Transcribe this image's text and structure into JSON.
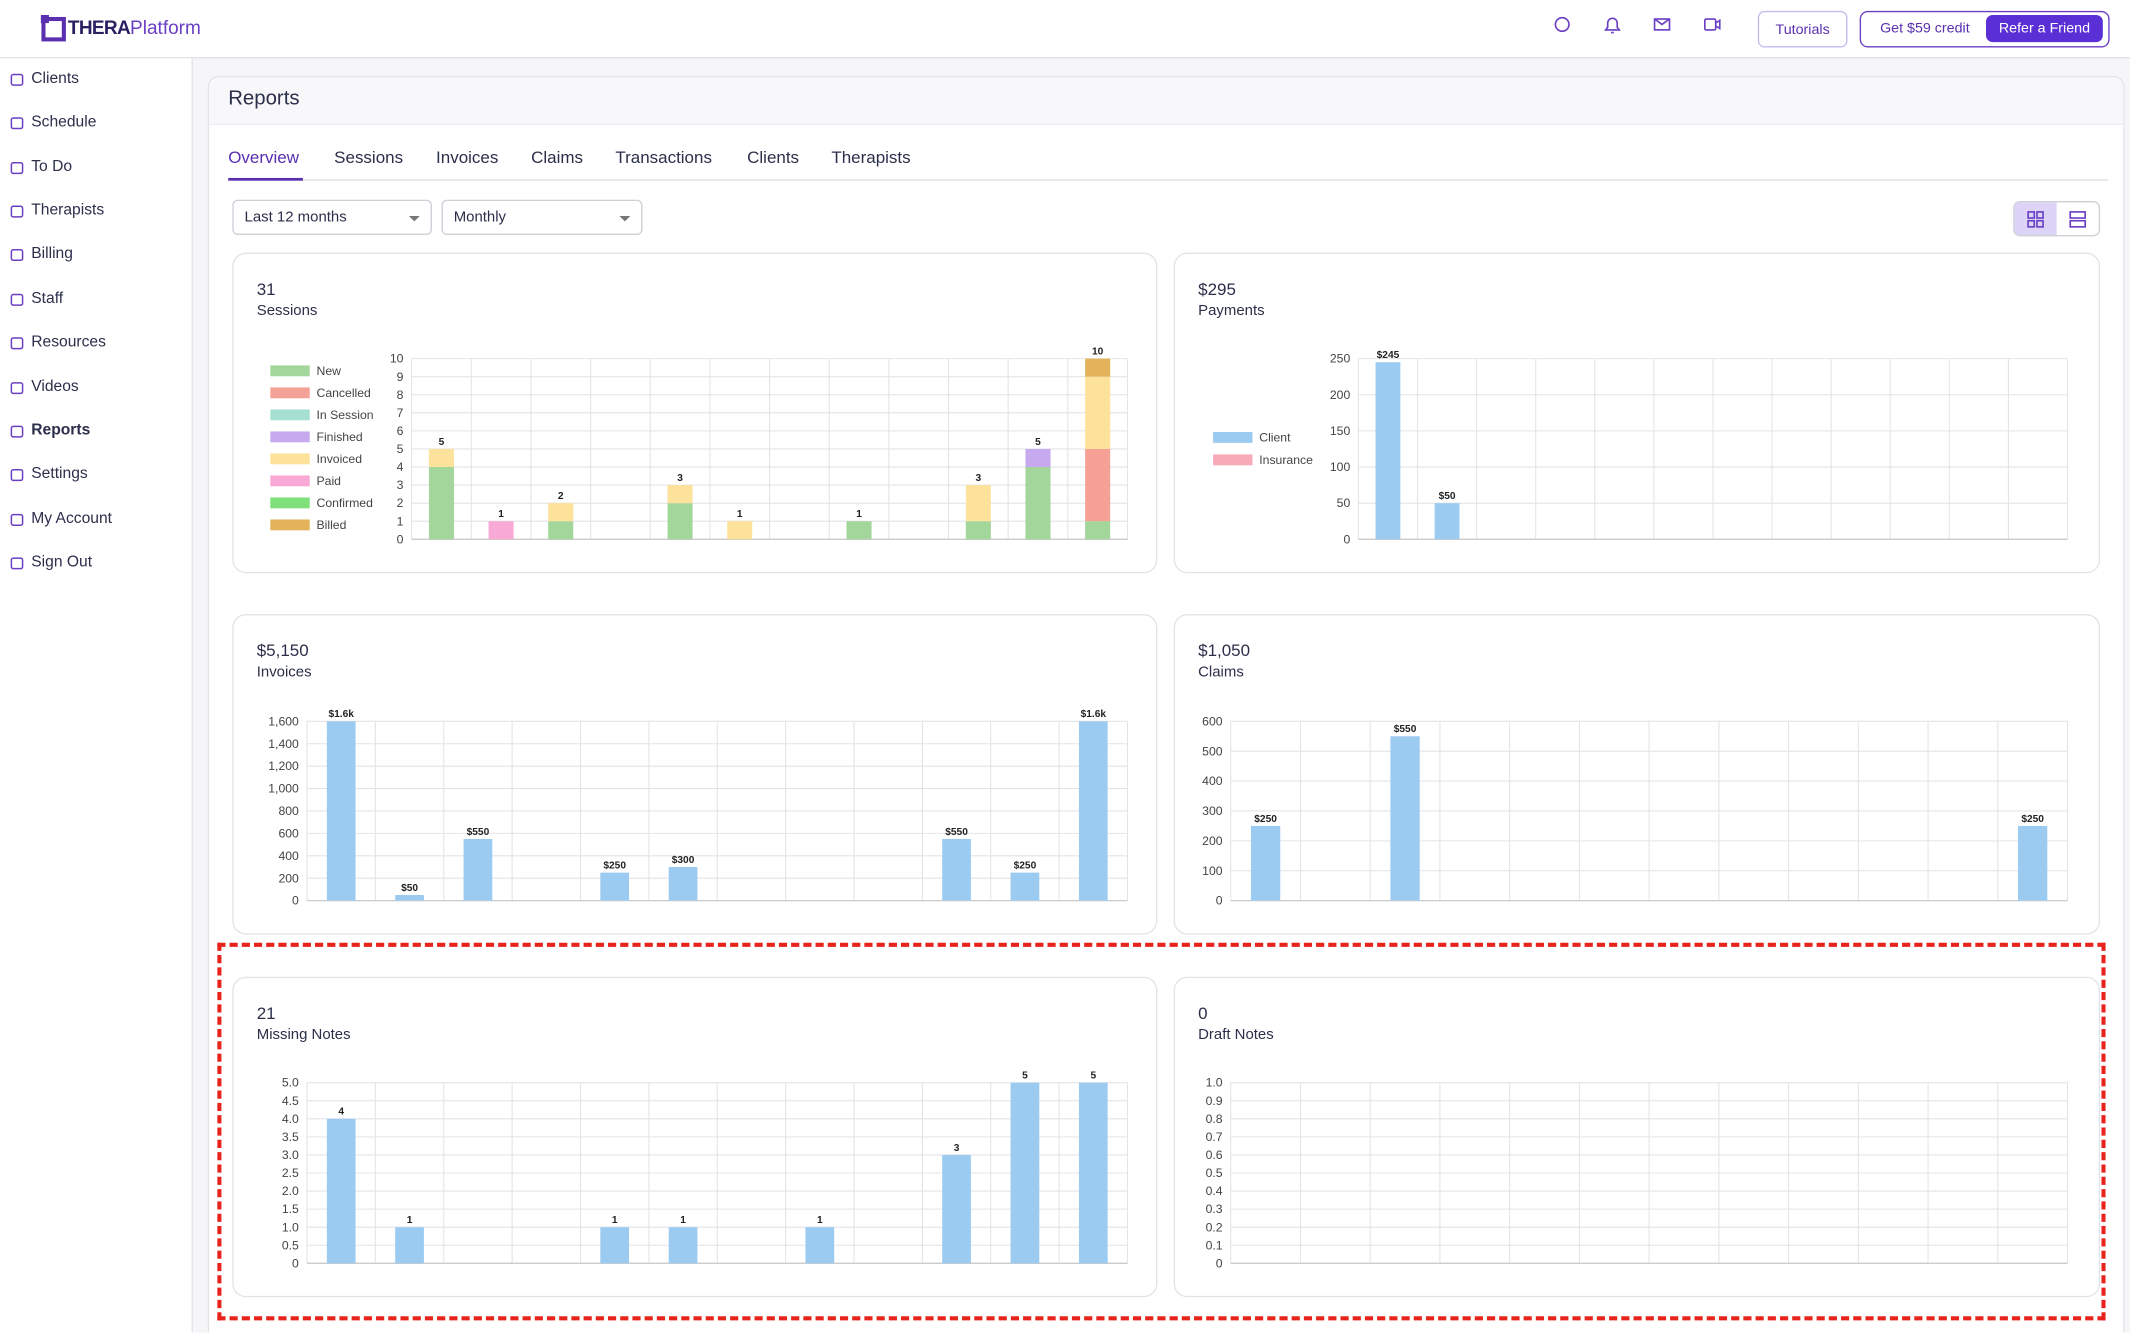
{
  "header": {
    "logo_bold": "THERA",
    "logo_light": "Platform",
    "buttons": [
      "Tutorials",
      "Get $59 credit",
      "Refer a Friend"
    ]
  },
  "sidebar": [
    "Clients",
    "Schedule",
    "To Do",
    "Therapists",
    "Billing",
    "Staff",
    "Resources",
    "Videos",
    "Reports",
    "Settings",
    "My Account",
    "Sign Out"
  ],
  "page": {
    "title": "Reports",
    "tabs": [
      "Overview",
      "Sessions",
      "Invoices",
      "Claims",
      "Transactions",
      "Clients",
      "Therapists"
    ],
    "filters": [
      "Last 12 months",
      "Monthly"
    ]
  },
  "cards": [
    {
      "value": "31",
      "label": "Sessions",
      "chart": {
        "type": "bar",
        "stacked": true,
        "legend": "left",
        "categories": [
          null,
          null,
          null,
          null,
          null,
          null,
          null,
          null,
          null,
          null,
          null,
          null
        ],
        "series": [
          {
            "name": "New",
            "color": "#a3d69a",
            "values": [
              4,
              0,
              1,
              0,
              2,
              0,
              0,
              1,
              0,
              1,
              4,
              1
            ]
          },
          {
            "name": "Cancelled",
            "color": "#f5a196",
            "values": [
              0,
              0,
              0,
              0,
              0,
              0,
              0,
              0,
              0,
              0,
              0,
              4
            ]
          },
          {
            "name": "In Session",
            "color": "#a6e0d3",
            "values": [
              0,
              0,
              0,
              0,
              0,
              0,
              0,
              0,
              0,
              0,
              0,
              0
            ]
          },
          {
            "name": "Finished",
            "color": "#c6a9ef",
            "values": [
              0,
              0,
              0,
              0,
              0,
              0,
              0,
              0,
              0,
              0,
              1,
              0
            ]
          },
          {
            "name": "Invoiced",
            "color": "#fde29b",
            "values": [
              1,
              0,
              1,
              0,
              1,
              1,
              0,
              0,
              0,
              2,
              0,
              4
            ]
          },
          {
            "name": "Paid",
            "color": "#f9a9d5",
            "values": [
              0,
              1,
              0,
              0,
              0,
              0,
              0,
              0,
              0,
              0,
              0,
              0
            ]
          },
          {
            "name": "Confirmed",
            "color": "#7fe07b",
            "values": [
              0,
              0,
              0,
              0,
              0,
              0,
              0,
              0,
              0,
              0,
              0,
              0
            ]
          },
          {
            "name": "Billed",
            "color": "#e2b35b",
            "values": [
              0,
              0,
              0,
              0,
              0,
              0,
              0,
              0,
              0,
              0,
              0,
              1
            ]
          }
        ],
        "totals": [
          5,
          1,
          2,
          null,
          3,
          1,
          null,
          1,
          null,
          3,
          5,
          10
        ],
        "ylim": [
          0,
          10
        ],
        "yticks": [
          0,
          1,
          2,
          3,
          4,
          5,
          6,
          7,
          8,
          9,
          10
        ],
        "grid": true
      }
    },
    {
      "value": "$295",
      "label": "Payments",
      "chart": {
        "type": "bar",
        "stacked": true,
        "legend": "left",
        "categories": [
          null,
          null,
          null,
          null,
          null,
          null,
          null,
          null,
          null,
          null,
          null,
          null
        ],
        "series": [
          {
            "name": "Client",
            "color": "#9ccbf2",
            "values": [
              245,
              50,
              0,
              0,
              0,
              0,
              0,
              0,
              0,
              0,
              0,
              0
            ],
            "value_labels": [
              "$245",
              "$50",
              null,
              null,
              null,
              null,
              null,
              null,
              null,
              null,
              null,
              null
            ]
          },
          {
            "name": "Insurance",
            "color": "#f9aab9",
            "values": [
              0,
              0,
              0,
              0,
              0,
              0,
              0,
              0,
              0,
              0,
              0,
              0
            ]
          }
        ],
        "ylim": [
          0,
          250
        ],
        "yticks": [
          0,
          50,
          100,
          150,
          200,
          250
        ],
        "grid": true
      }
    },
    {
      "value": "$5,150",
      "label": "Invoices",
      "chart": {
        "type": "bar",
        "color": "#9ccbf2",
        "categories": [
          null,
          null,
          null,
          null,
          null,
          null,
          null,
          null,
          null,
          null,
          null,
          null
        ],
        "values": [
          1600,
          50,
          550,
          0,
          250,
          300,
          0,
          0,
          0,
          550,
          250,
          1600
        ],
        "value_labels": [
          "$1.6k",
          "$50",
          "$550",
          null,
          "$250",
          "$300",
          null,
          null,
          null,
          "$550",
          "$250",
          "$1.6k"
        ],
        "ylim": [
          0,
          1600
        ],
        "yticks": [
          0,
          200,
          400,
          600,
          800,
          {
            "value": 1000,
            "label": "1,000"
          },
          {
            "value": 1200,
            "label": "1,200"
          },
          {
            "value": 1400,
            "label": "1,400"
          },
          {
            "value": 1600,
            "label": "1,600"
          }
        ],
        "grid": true
      }
    },
    {
      "value": "$1,050",
      "label": "Claims",
      "chart": {
        "type": "bar",
        "color": "#9ccbf2",
        "categories": [
          null,
          null,
          null,
          null,
          null,
          null,
          null,
          null,
          null,
          null,
          null,
          null
        ],
        "values": [
          250,
          0,
          550,
          0,
          0,
          0,
          0,
          0,
          0,
          0,
          0,
          250
        ],
        "value_labels": [
          "$250",
          null,
          "$550",
          null,
          null,
          null,
          null,
          null,
          null,
          null,
          null,
          "$250"
        ],
        "ylim": [
          0,
          600
        ],
        "yticks": [
          0,
          100,
          200,
          300,
          400,
          500,
          600
        ],
        "grid": true
      }
    },
    {
      "value": "21",
      "label": "Missing Notes",
      "chart": {
        "type": "bar",
        "color": "#9ccbf2",
        "categories": [
          null,
          null,
          null,
          null,
          null,
          null,
          null,
          null,
          null,
          null,
          null,
          null
        ],
        "values": [
          4,
          1,
          0,
          0,
          1,
          1,
          0,
          1,
          0,
          3,
          5,
          5
        ],
        "value_labels": [
          "4",
          "1",
          null,
          null,
          "1",
          "1",
          null,
          "1",
          null,
          "3",
          "5",
          "5"
        ],
        "ylim": [
          0,
          5
        ],
        "yticks": [
          0,
          0.5,
          {
            "value": 1,
            "label": "1.0"
          },
          1.5,
          {
            "value": 2,
            "label": "2.0"
          },
          2.5,
          {
            "value": 3,
            "label": "3.0"
          },
          3.5,
          {
            "value": 4,
            "label": "4.0"
          },
          4.5,
          {
            "value": 5,
            "label": "5.0"
          }
        ],
        "grid": true
      }
    },
    {
      "value": "0",
      "label": "Draft Notes",
      "chart": {
        "type": "bar",
        "color": "#9ccbf2",
        "categories": [
          null,
          null,
          null,
          null,
          null,
          null,
          null,
          null,
          null,
          null,
          null,
          null
        ],
        "values": [
          0,
          0,
          0,
          0,
          0,
          0,
          0,
          0,
          0,
          0,
          0,
          0
        ],
        "ylim": [
          0,
          1
        ],
        "yticks": [
          0,
          0.1,
          0.2,
          0.3,
          0.4,
          0.5,
          0.6,
          0.7,
          0.8,
          0.9,
          {
            "value": 1,
            "label": "1.0"
          }
        ],
        "grid": true
      }
    }
  ]
}
